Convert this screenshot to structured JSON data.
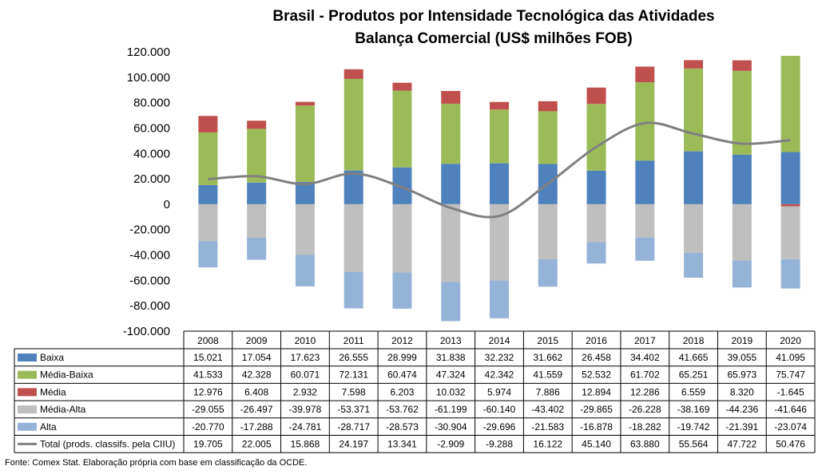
{
  "chart_data": {
    "type": "bar",
    "stacked": true,
    "title": "Brasil - Produtos por Intensidade Tecnológica das Atividades",
    "subtitle": "Balança Comercial (US$ milhões FOB)",
    "categories": [
      "2008",
      "2009",
      "2010",
      "2011",
      "2012",
      "2013",
      "2014",
      "2015",
      "2016",
      "2017",
      "2018",
      "2019",
      "2020"
    ],
    "ylim": [
      -100000,
      120000
    ],
    "y_ticks": [
      {
        "value": 120000,
        "label": "120.000"
      },
      {
        "value": 100000,
        "label": "100.000"
      },
      {
        "value": 80000,
        "label": "80.000"
      },
      {
        "value": 60000,
        "label": "60.000"
      },
      {
        "value": 40000,
        "label": "40.000"
      },
      {
        "value": 20000,
        "label": "20.000"
      },
      {
        "value": 0,
        "label": "0"
      },
      {
        "value": -20000,
        "label": "-20.000"
      },
      {
        "value": -40000,
        "label": "-40.000"
      },
      {
        "value": -60000,
        "label": "-60.000"
      },
      {
        "value": -80000,
        "label": "-80.000"
      },
      {
        "value": -100000,
        "label": "-100.000"
      }
    ],
    "grid": false,
    "legend": "data table below chart",
    "series": [
      {
        "name": "Baixa",
        "type": "bar",
        "color": "#4F81BD",
        "values": [
          15021,
          17054,
          17623,
          26555,
          28999,
          31838,
          32232,
          31662,
          26458,
          34402,
          41665,
          39055,
          41095
        ],
        "labels": [
          "15.021",
          "17.054",
          "17.623",
          "26.555",
          "28.999",
          "31.838",
          "32.232",
          "31.662",
          "26.458",
          "34.402",
          "41.665",
          "39.055",
          "41.095"
        ]
      },
      {
        "name": "Média-Baixa",
        "type": "bar",
        "color": "#9BBB59",
        "values": [
          41533,
          42328,
          60071,
          72131,
          60474,
          47324,
          42342,
          41559,
          52532,
          61702,
          65251,
          65973,
          75747
        ],
        "labels": [
          "41.533",
          "42.328",
          "60.071",
          "72.131",
          "60.474",
          "47.324",
          "42.342",
          "41.559",
          "52.532",
          "61.702",
          "65.251",
          "65.973",
          "75.747"
        ]
      },
      {
        "name": "Média",
        "type": "bar",
        "color": "#C0504D",
        "values": [
          12976,
          6408,
          2932,
          7598,
          6203,
          10032,
          5974,
          7886,
          12894,
          12286,
          6559,
          8320,
          -1645
        ],
        "labels": [
          "12.976",
          "6.408",
          "2.932",
          "7.598",
          "6.203",
          "10.032",
          "5.974",
          "7.886",
          "12.894",
          "12.286",
          "6.559",
          "8.320",
          "-1.645"
        ]
      },
      {
        "name": "Média-Alta",
        "type": "bar",
        "color": "#BFBFBF",
        "values": [
          -29055,
          -26497,
          -39978,
          -53371,
          -53762,
          -61199,
          -60140,
          -43402,
          -29865,
          -26228,
          -38169,
          -44236,
          -41646
        ],
        "labels": [
          "-29.055",
          "-26.497",
          "-39.978",
          "-53.371",
          "-53.762",
          "-61.199",
          "-60.140",
          "-43.402",
          "-29.865",
          "-26.228",
          "-38.169",
          "-44.236",
          "-41.646"
        ]
      },
      {
        "name": "Alta",
        "type": "bar",
        "color": "#95B3D7",
        "values": [
          -20770,
          -17288,
          -24781,
          -28717,
          -28573,
          -30904,
          -29696,
          -21583,
          -16878,
          -18282,
          -19742,
          -21391,
          -23074
        ],
        "labels": [
          "-20.770",
          "-17.288",
          "-24.781",
          "-28.717",
          "-28.573",
          "-30.904",
          "-29.696",
          "-21.583",
          "-16.878",
          "-18.282",
          "-19.742",
          "-21.391",
          "-23.074"
        ]
      },
      {
        "name": "Total (prods. classifs. pela CIIU)",
        "type": "line",
        "color": "#808080",
        "values": [
          19705,
          22005,
          15868,
          24197,
          13341,
          -2909,
          -9288,
          16122,
          45140,
          63880,
          55564,
          47722,
          50476
        ],
        "labels": [
          "19.705",
          "22.005",
          "15.868",
          "24.197",
          "13.341",
          "-2.909",
          "-9.288",
          "16.122",
          "45.140",
          "63.880",
          "55.564",
          "47.722",
          "50.476"
        ]
      }
    ]
  },
  "footer": {
    "source": "Fonte: Comex Stat. Elaboração própria com base em classificação da OCDE."
  }
}
